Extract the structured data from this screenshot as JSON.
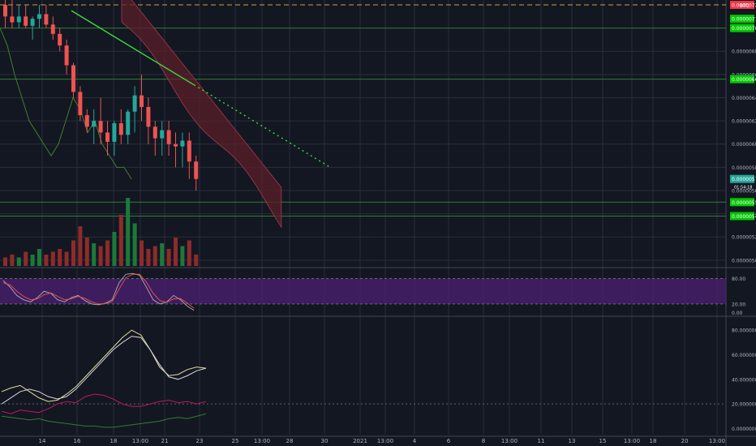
{
  "colors": {
    "background": "#131722",
    "grid": "#2a2e39",
    "up": "#26a69a",
    "down": "#ef5350",
    "volume_up": "#1b7a3a",
    "volume_down": "#8e2b2b",
    "hline": "#2e7d32",
    "trendline": "#3ddc3d",
    "cloud": "#5b1f2a",
    "rsi_band": "#4a1f6e",
    "text": "#b2b5be",
    "label_green": "#00c800",
    "label_red": "#f23645",
    "label_teal": "#26a69a"
  },
  "chart_data": [
    {
      "type": "candlestick",
      "symbol_label": "BTC",
      "x_tick_labels": [
        "14",
        "16",
        "18",
        "13:00",
        "21",
        "23",
        "25",
        "13:00",
        "28",
        "30",
        "2021",
        "13:00",
        "4",
        "6",
        "8",
        "13:00",
        "11",
        "13",
        "15",
        "13:00",
        "18",
        "20",
        "13:00"
      ],
      "y_tick_labels": [
        "0.0000068",
        "0.0000066",
        "0.0000064",
        "0.0000062",
        "0.0000060",
        "0.0000058",
        "0.0000056",
        "0.0000054",
        "0.0000052",
        "0.0000050"
      ],
      "ylim": [
        4.95e-06,
        7.2e-06
      ],
      "price_labels": [
        {
          "text": "0.0000072",
          "style": "red",
          "value": 7.2e-06
        },
        {
          "text": "0.0000071",
          "style": "green",
          "value": 7.08e-06
        },
        {
          "text": "0.0000070",
          "style": "green",
          "value": 7e-06
        },
        {
          "text": "0.0000066",
          "style": "green",
          "value": 6.56e-06
        },
        {
          "text": "0.0000057",
          "style": "teal",
          "value": 5.7e-06
        },
        {
          "text": "0.0000055",
          "style": "green",
          "value": 5.5e-06
        },
        {
          "text": "0.0000054",
          "style": "green",
          "value": 5.38e-06
        }
      ],
      "secondary_labels": [
        "01:54:18"
      ],
      "horizontal_levels": [
        7.2e-06,
        7e-06,
        6.56e-06,
        5.5e-06,
        5.38e-06
      ],
      "candles": [
        {
          "o": 7.2e-06,
          "h": 7.3e-06,
          "l": 7e-06,
          "c": 7.1e-06
        },
        {
          "o": 7.1e-06,
          "h": 7.25e-06,
          "l": 7e-06,
          "c": 7.05e-06
        },
        {
          "o": 7.05e-06,
          "h": 7.2e-06,
          "l": 7e-06,
          "c": 7.1e-06
        },
        {
          "o": 7.1e-06,
          "h": 7.2e-06,
          "l": 7e-06,
          "c": 7.02e-06
        },
        {
          "o": 7.02e-06,
          "h": 7.1e-06,
          "l": 6.9e-06,
          "c": 7.08e-06
        },
        {
          "o": 7.08e-06,
          "h": 7.2e-06,
          "l": 7e-06,
          "c": 7.12e-06
        },
        {
          "o": 7.12e-06,
          "h": 7.2e-06,
          "l": 7e-06,
          "c": 7.03e-06
        },
        {
          "o": 7.03e-06,
          "h": 7.1e-06,
          "l": 6.9e-06,
          "c": 6.95e-06
        },
        {
          "o": 6.95e-06,
          "h": 7e-06,
          "l": 6.8e-06,
          "c": 6.85e-06
        },
        {
          "o": 6.85e-06,
          "h": 6.9e-06,
          "l": 6.6e-06,
          "c": 6.68e-06
        },
        {
          "o": 6.68e-06,
          "h": 6.7e-06,
          "l": 6.4e-06,
          "c": 6.45e-06
        },
        {
          "o": 6.45e-06,
          "h": 6.5e-06,
          "l": 6.2e-06,
          "c": 6.25e-06
        },
        {
          "o": 6.25e-06,
          "h": 6.3e-06,
          "l": 6.1e-06,
          "c": 6.15e-06
        },
        {
          "o": 6.15e-06,
          "h": 6.3e-06,
          "l": 6e-06,
          "c": 6.2e-06
        },
        {
          "o": 6.2e-06,
          "h": 6.4e-06,
          "l": 6e-06,
          "c": 6.1e-06
        },
        {
          "o": 6.1e-06,
          "h": 6.2e-06,
          "l": 5.9e-06,
          "c": 6.02e-06
        },
        {
          "o": 6.02e-06,
          "h": 6.2e-06,
          "l": 5.9e-06,
          "c": 6.18e-06
        },
        {
          "o": 6.18e-06,
          "h": 6.3e-06,
          "l": 6e-06,
          "c": 6.08e-06
        },
        {
          "o": 6.08e-06,
          "h": 6.3e-06,
          "l": 6e-06,
          "c": 6.28e-06
        },
        {
          "o": 6.28e-06,
          "h": 6.5e-06,
          "l": 6.1e-06,
          "c": 6.42e-06
        },
        {
          "o": 6.42e-06,
          "h": 6.6e-06,
          "l": 6.2e-06,
          "c": 6.32e-06
        },
        {
          "o": 6.32e-06,
          "h": 6.4e-06,
          "l": 6e-06,
          "c": 6.15e-06
        },
        {
          "o": 6.15e-06,
          "h": 6.2e-06,
          "l": 5.9e-06,
          "c": 6.05e-06
        },
        {
          "o": 6.05e-06,
          "h": 6.2e-06,
          "l": 5.9e-06,
          "c": 6.12e-06
        },
        {
          "o": 6.12e-06,
          "h": 6.2e-06,
          "l": 5.9e-06,
          "c": 6e-06
        },
        {
          "o": 6e-06,
          "h": 6.1e-06,
          "l": 5.8e-06,
          "c": 5.98e-06
        },
        {
          "o": 5.98e-06,
          "h": 6.1e-06,
          "l": 5.8e-06,
          "c": 6.03e-06
        },
        {
          "o": 6.03e-06,
          "h": 6.1e-06,
          "l": 5.7e-06,
          "c": 5.85e-06
        },
        {
          "o": 5.85e-06,
          "h": 5.9e-06,
          "l": 5.6e-06,
          "c": 5.7e-06
        }
      ],
      "volume": [
        3,
        4,
        3,
        5,
        4,
        6,
        4,
        5,
        6,
        5,
        9,
        14,
        10,
        8,
        7,
        9,
        12,
        18,
        24,
        15,
        9,
        6,
        7,
        8,
        6,
        10,
        7,
        9,
        4
      ],
      "trendline": {
        "from": {
          "bar": 10,
          "price": 7.15e-06
        },
        "to": {
          "bar": 48,
          "price": 5.8e-06
        },
        "dotted_after_bar": 28
      }
    },
    {
      "type": "line",
      "name": "oscillator",
      "y_tick_labels": [
        "80.00",
        "20.00",
        "0.00"
      ],
      "ylim": [
        -5,
        100
      ],
      "band": [
        20,
        80
      ],
      "series": [
        {
          "values": [
            75,
            60,
            40,
            30,
            25,
            35,
            50,
            45,
            30,
            25,
            35,
            40,
            28,
            20,
            18,
            22,
            30,
            70,
            90,
            92,
            88,
            60,
            30,
            20,
            25,
            40,
            30,
            15,
            5
          ]
        },
        {
          "values": [
            70,
            65,
            50,
            38,
            30,
            32,
            42,
            46,
            38,
            30,
            32,
            38,
            33,
            25,
            20,
            21,
            26,
            55,
            82,
            90,
            90,
            72,
            45,
            28,
            24,
            32,
            33,
            22,
            10
          ]
        }
      ]
    },
    {
      "type": "line",
      "name": "adx",
      "y_tick_labels": [
        "80.0000000",
        "60.0000000",
        "40.0000000",
        "20.0000000",
        "0.0000000"
      ],
      "ylim": [
        -5,
        90
      ],
      "reference_level": 20,
      "series": [
        {
          "values": [
            30,
            33,
            35,
            30,
            25,
            22,
            23,
            28,
            34,
            42,
            50,
            58,
            66,
            74,
            80,
            76,
            64,
            50,
            43,
            44,
            48,
            50,
            49
          ]
        },
        {
          "values": [
            20,
            25,
            30,
            32,
            30,
            26,
            24,
            26,
            32,
            40,
            48,
            56,
            64,
            70,
            75,
            74,
            64,
            52,
            42,
            40,
            43,
            47,
            49
          ]
        },
        {
          "values": [
            14,
            12,
            15,
            14,
            13,
            16,
            20,
            22,
            21,
            26,
            28,
            27,
            24,
            20,
            18,
            18,
            20,
            22,
            23,
            21,
            22,
            20,
            22
          ]
        },
        {
          "values": [
            10,
            9,
            8,
            7,
            8,
            6,
            5,
            4,
            3,
            2,
            2,
            1,
            1,
            2,
            3,
            4,
            5,
            6,
            8,
            9,
            8,
            10,
            12
          ]
        }
      ]
    }
  ]
}
